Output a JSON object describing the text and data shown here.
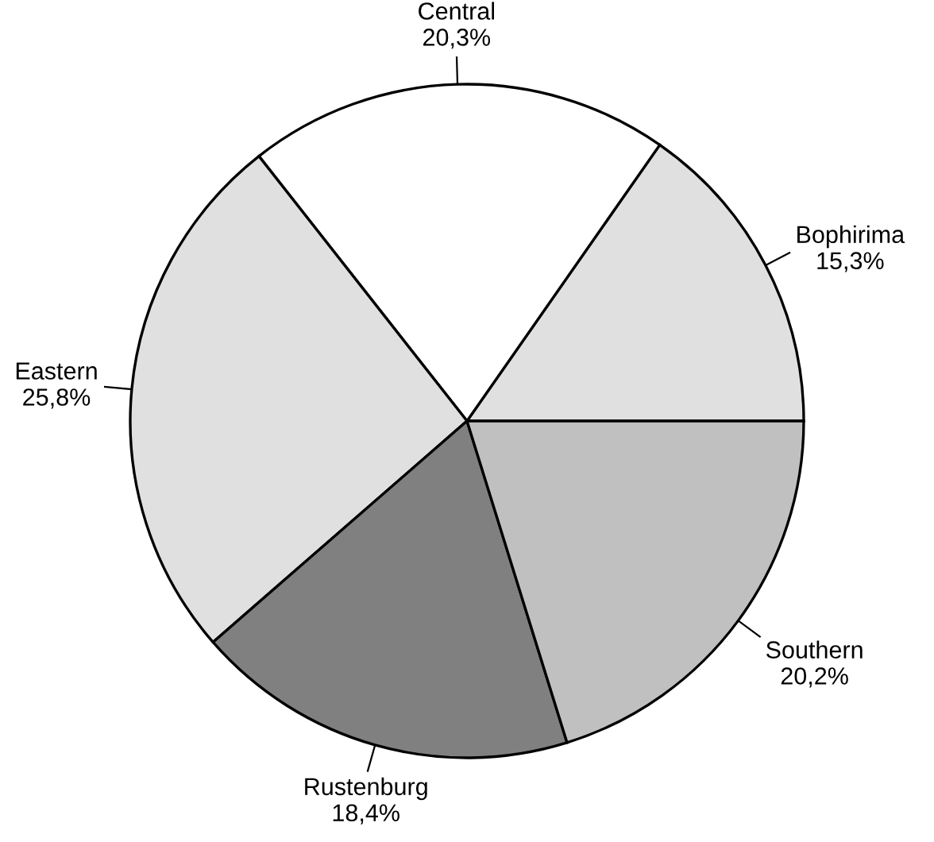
{
  "chart_data": {
    "type": "pie",
    "categories": [
      "Bophirima",
      "Central",
      "Eastern",
      "Rustenburg",
      "Southern"
    ],
    "values": [
      15.3,
      20.3,
      25.8,
      18.4,
      20.2
    ],
    "value_labels": [
      "15,3%",
      "20,3%",
      "25,8%",
      "18,4%",
      "20,2%"
    ],
    "colors": [
      "#e0e0e0",
      "#ffffff",
      "#e0e0e0",
      "#808080",
      "#c0c0c0"
    ]
  }
}
